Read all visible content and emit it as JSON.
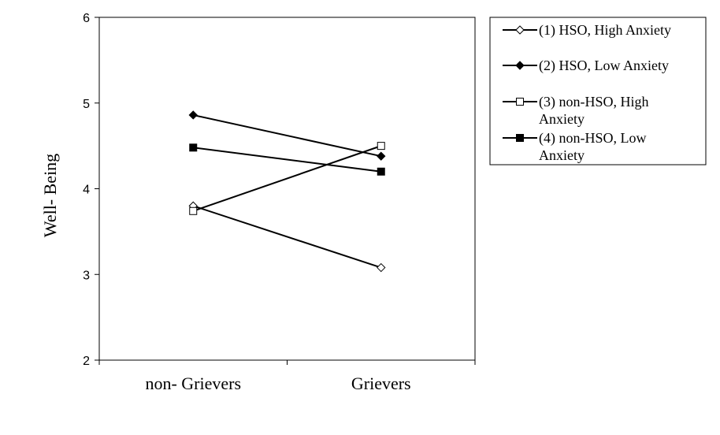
{
  "chart_data": {
    "type": "line",
    "title": "",
    "xlabel": "",
    "ylabel": "Well- Being",
    "ylim": [
      2,
      6
    ],
    "yticks": [
      "2",
      "3",
      "4",
      "5",
      "6"
    ],
    "categories": [
      "non- Grievers",
      "Grievers"
    ],
    "grid": false,
    "legend_position": "right",
    "series": [
      {
        "name": "(1) HSO, High Anxiety",
        "marker": "diamond-open",
        "values": [
          3.8,
          3.08
        ]
      },
      {
        "name": "(2) HSO, Low Anxiety",
        "marker": "diamond-filled",
        "values": [
          4.86,
          4.38
        ]
      },
      {
        "name": "(3) non-HSO, High Anxiety",
        "marker": "square-open",
        "values": [
          3.74,
          4.5
        ]
      },
      {
        "name": "(4) non-HSO, Low Anxiety",
        "marker": "square-filled",
        "values": [
          4.48,
          4.2
        ]
      }
    ],
    "colors": {
      "line": "#000000",
      "axis": "#000000",
      "background": "#ffffff"
    }
  }
}
